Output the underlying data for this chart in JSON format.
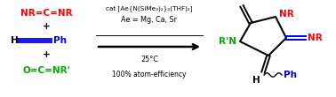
{
  "bg_color": "#ffffff",
  "reactant1_text": "NR=C=NR",
  "reactant1_color": "#ff0000",
  "plus_color": "#000000",
  "reactant2_H_color": "#000000",
  "reactant2_Ph_color": "#0000ee",
  "reactant2_bond_color": "#0000ee",
  "reactant3_text": "O=C=NR'",
  "reactant3_color": "#00aa00",
  "cat_line1": "cat [Ae{N(SiMe₃)₂}₂(THF)₂]",
  "cat_line2": "Ae = Mg, Ca, Sr",
  "cat_line3": "25°C",
  "cat_line4": "100% atom-efficiency",
  "cat_color": "#000000",
  "product_O_color": "#00aa00",
  "product_NR_top_color": "#ff0000",
  "product_RpN_color": "#00aa00",
  "product_NR_right_color": "#ff0000",
  "product_H_color": "#000000",
  "product_Ph_color": "#0000ee",
  "arrow_color": "#000000",
  "ring_color": "#000000",
  "figsize": [
    3.78,
    1.1
  ],
  "dpi": 100
}
